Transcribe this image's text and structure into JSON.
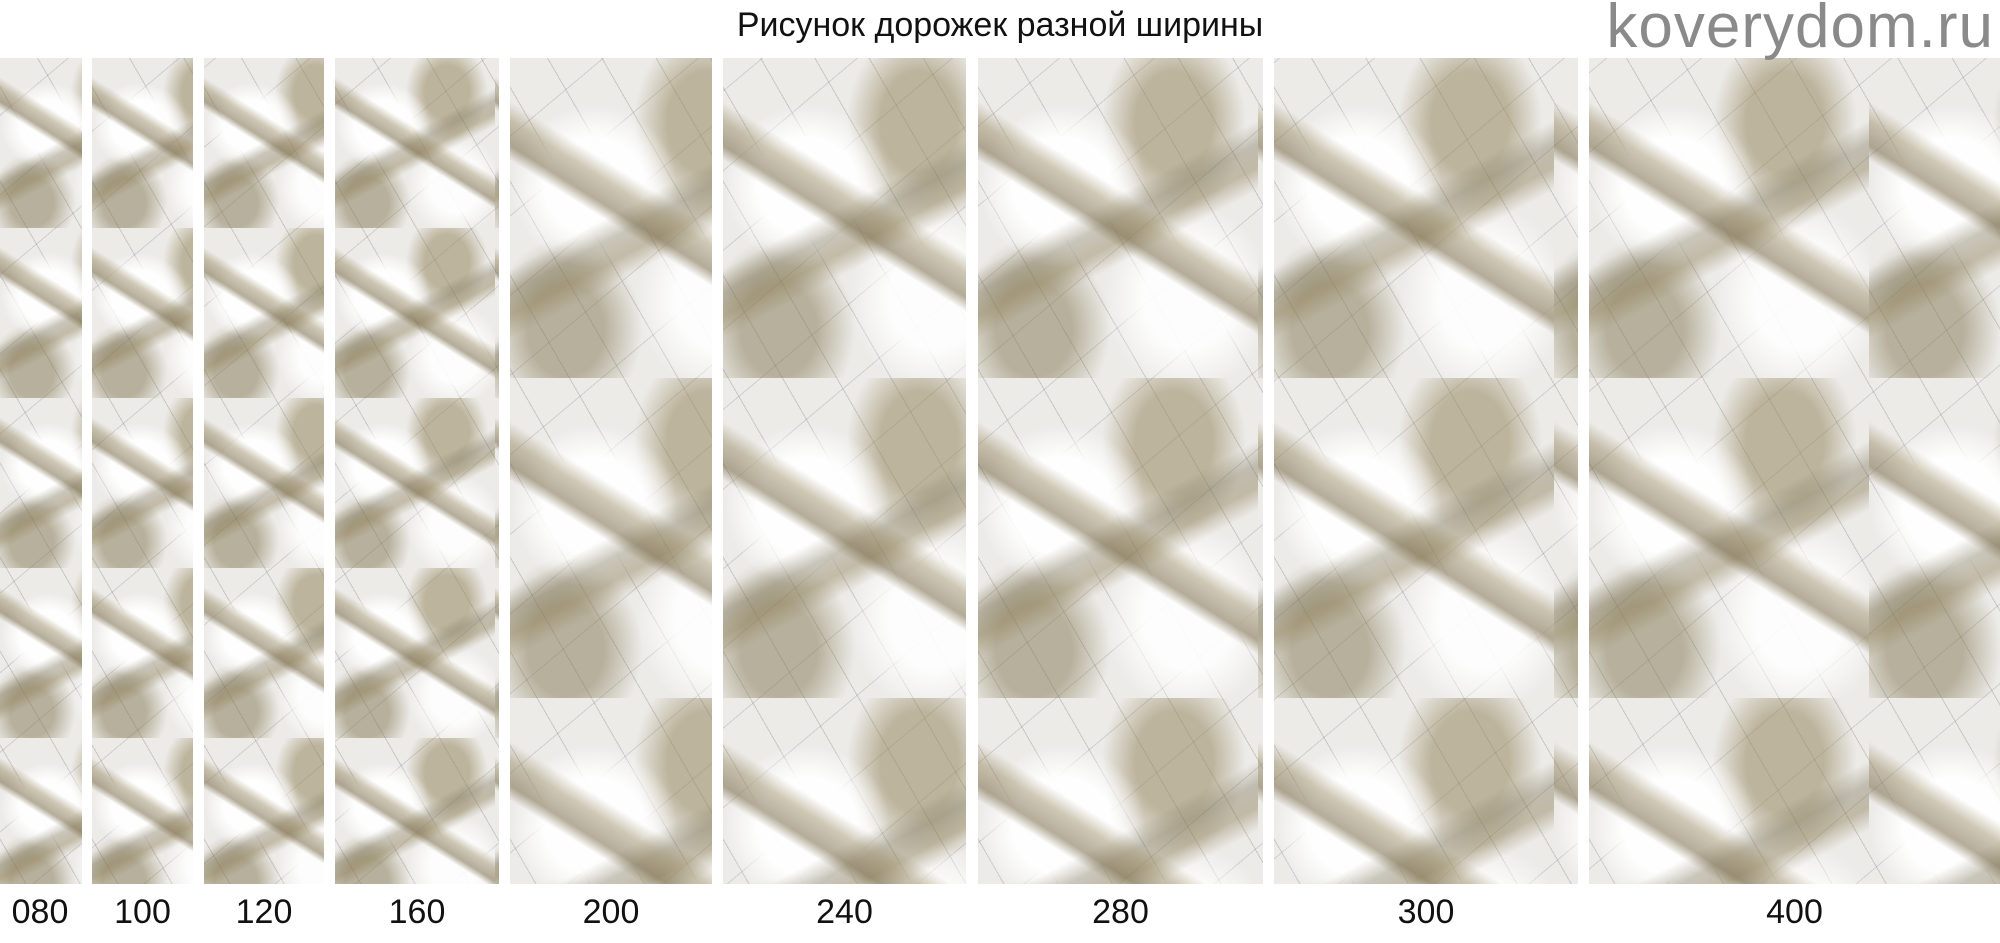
{
  "title": "Рисунок дорожек разной ширины",
  "widths": [
    "080",
    "100",
    "120",
    "160",
    "200",
    "240",
    "280",
    "300",
    "400"
  ],
  "watermark": "koverydom.ru",
  "colors": {
    "marble_base": "#ecebe8",
    "vein_color": "#8c7f5c",
    "watermark": "#8a8a8a"
  }
}
